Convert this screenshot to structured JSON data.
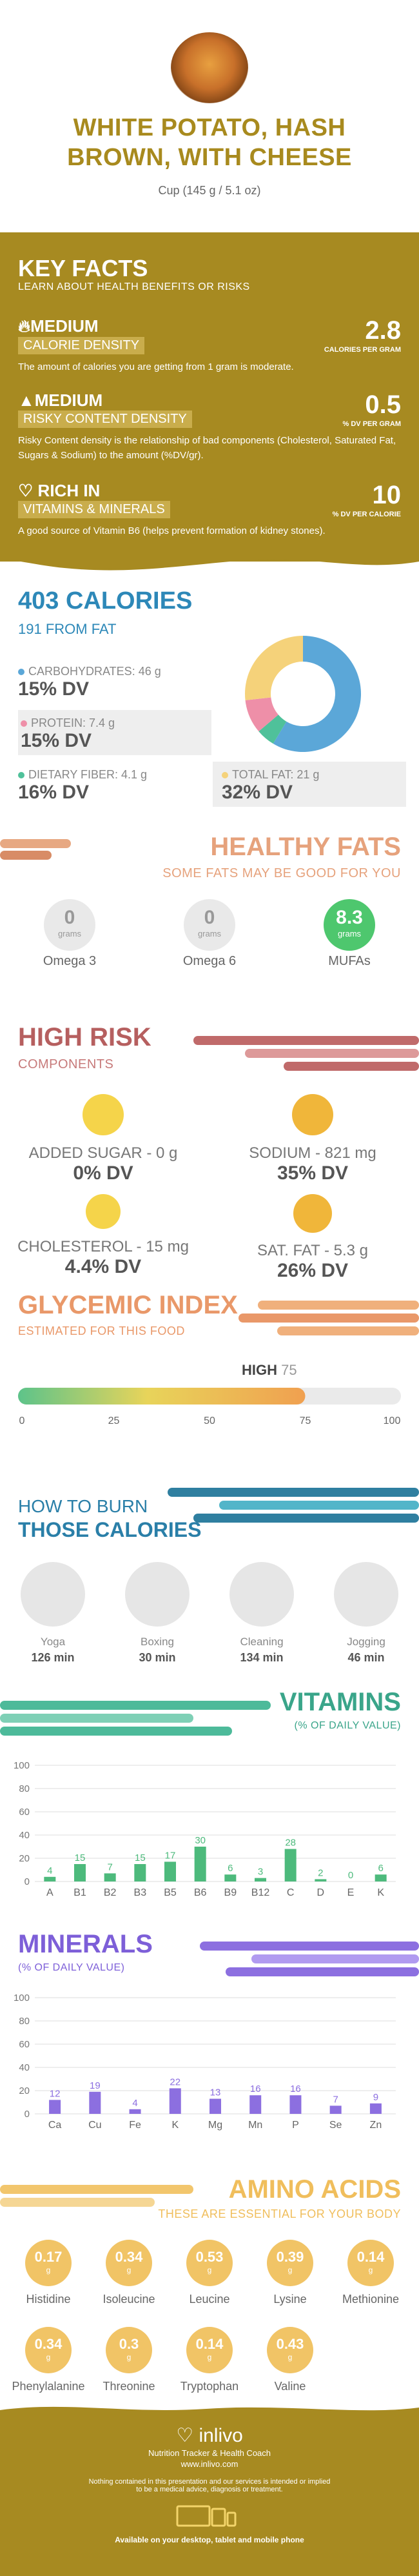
{
  "header": {
    "title_line1": "WHITE POTATO, HASH",
    "title_line2": "BROWN, WITH CHEESE",
    "serving": "Cup (145 g / 5.1 oz)"
  },
  "key_facts": {
    "title": "KEY FACTS",
    "subtitle": "LEARN ABOUT HEALTH BENEFITS OR RISKS",
    "items": [
      {
        "level": "MEDIUM",
        "kind": "CALORIE DENSITY",
        "value": "2.8",
        "unit": "CALORIES PER GRAM",
        "desc": "The amount of calories you are getting from 1 gram is moderate."
      },
      {
        "level": "MEDIUM",
        "kind": "RISKY CONTENT DENSITY",
        "value": "0.5",
        "unit": "% DV PER GRAM",
        "desc": "Risky Content density is the relationship of bad components (Cholesterol, Saturated Fat, Sugars & Sodium) to the amount (%DV/gr)."
      },
      {
        "level": "RICH IN",
        "kind": "VITAMINS & MINERALS",
        "value": "10",
        "unit": "% DV PER CALORIE",
        "desc": "A good source of Vitamin B6 (helps prevent formation of kidney stones)."
      }
    ]
  },
  "calories": {
    "title": "403 CALORIES",
    "from_fat": "191 FROM FAT",
    "carbs": {
      "label": "CARBOHYDRATES: 46 g",
      "dv": "15% DV",
      "color": "#5ba7d8"
    },
    "protein": {
      "label": "PROTEIN: 7.4 g",
      "dv": "15% DV",
      "color": "#ee8fa8"
    },
    "fiber": {
      "label": "DIETARY FIBER: 4.1 g",
      "dv": "16% DV",
      "color": "#4fc19a"
    },
    "fat": {
      "label": "TOTAL FAT: 21 g",
      "dv": "32% DV",
      "color": "#f5d27a"
    },
    "donut": [
      {
        "name": "carbs",
        "grams": 46,
        "color": "#5ba7d8"
      },
      {
        "name": "fiber",
        "grams": 4.1,
        "color": "#4fc19a"
      },
      {
        "name": "protein",
        "grams": 7.4,
        "color": "#ee8fa8"
      },
      {
        "name": "fat",
        "grams": 21,
        "color": "#f5d27a"
      }
    ]
  },
  "healthy_fats": {
    "title": "HEALTHY FATS",
    "subtitle": "SOME FATS MAY BE GOOD FOR YOU",
    "items": [
      {
        "value": "0",
        "unit": "grams",
        "label": "Omega 3"
      },
      {
        "value": "0",
        "unit": "grams",
        "label": "Omega 6"
      },
      {
        "value": "8.3",
        "unit": "grams",
        "label": "MUFAs"
      }
    ]
  },
  "high_risk": {
    "title": "HIGH RISK",
    "subtitle": "COMPONENTS",
    "items": [
      {
        "label": "ADDED SUGAR - 0 g",
        "dv": "0% DV"
      },
      {
        "label": "SODIUM - 821 mg",
        "dv": "35% DV"
      },
      {
        "label": "CHOLESTEROL - 15 mg",
        "dv": "4.4% DV"
      },
      {
        "label": "SAT. FAT - 5.3 g",
        "dv": "26% DV"
      }
    ]
  },
  "glycemic": {
    "title": "GLYCEMIC INDEX",
    "subtitle": "ESTIMATED FOR THIS FOOD",
    "level": "HIGH",
    "value": 75,
    "ticks": [
      "0",
      "25",
      "50",
      "75",
      "100"
    ]
  },
  "burn": {
    "title1": "HOW TO BURN",
    "title2": "THOSE CALORIES",
    "items": [
      {
        "label": "Yoga",
        "minutes": "126 min"
      },
      {
        "label": "Boxing",
        "minutes": "30 min"
      },
      {
        "label": "Cleaning",
        "minutes": "134 min"
      },
      {
        "label": "Jogging",
        "minutes": "46 min"
      }
    ]
  },
  "chart_data": [
    {
      "type": "bar",
      "title": "VITAMINS",
      "ylabel": "(% OF DAILY VALUE)",
      "categories": [
        "A",
        "B1",
        "B2",
        "B3",
        "B5",
        "B6",
        "B9",
        "B12",
        "C",
        "D",
        "E",
        "K"
      ],
      "values": [
        4,
        15,
        7,
        15,
        17,
        30,
        6,
        3,
        28,
        2,
        0,
        6
      ],
      "ylim": [
        0,
        100
      ],
      "yticks": [
        "0",
        "20",
        "40",
        "60",
        "80",
        "100"
      ],
      "color": "#4dba7c"
    },
    {
      "type": "bar",
      "title": "MINERALS",
      "ylabel": "(% OF DAILY VALUE)",
      "categories": [
        "Ca",
        "Cu",
        "Fe",
        "K",
        "Mg",
        "Mn",
        "P",
        "Se",
        "Zn"
      ],
      "values": [
        12,
        19,
        4,
        22,
        13,
        16,
        16,
        7,
        9
      ],
      "ylim": [
        0,
        100
      ],
      "yticks": [
        "0",
        "20",
        "40",
        "60",
        "80",
        "100"
      ],
      "color": "#8c6fe0"
    }
  ],
  "amino": {
    "title": "AMINO ACIDS",
    "subtitle": "THESE ARE ESSENTIAL FOR YOUR BODY",
    "unit": "g",
    "items": [
      {
        "value": "0.17",
        "label": "Histidine"
      },
      {
        "value": "0.34",
        "label": "Isoleucine"
      },
      {
        "value": "0.53",
        "label": "Leucine"
      },
      {
        "value": "0.39",
        "label": "Lysine"
      },
      {
        "value": "0.14",
        "label": "Methionine"
      },
      {
        "value": "0.34",
        "label": "Phenylalanine"
      },
      {
        "value": "0.3",
        "label": "Threonine"
      },
      {
        "value": "0.14",
        "label": "Tryptophan"
      },
      {
        "value": "0.43",
        "label": "Valine"
      }
    ]
  },
  "footer": {
    "brand": "inlivo",
    "tagline": "Nutrition Tracker & Health Coach",
    "url": "www.inlivo.com",
    "disclaimer1": "Nothing contained in this presentation and our services is intended or implied",
    "disclaimer2": "to be a medical advice, diagnosis or treatment.",
    "available": "Available on your desktop, tablet and mobile phone"
  }
}
